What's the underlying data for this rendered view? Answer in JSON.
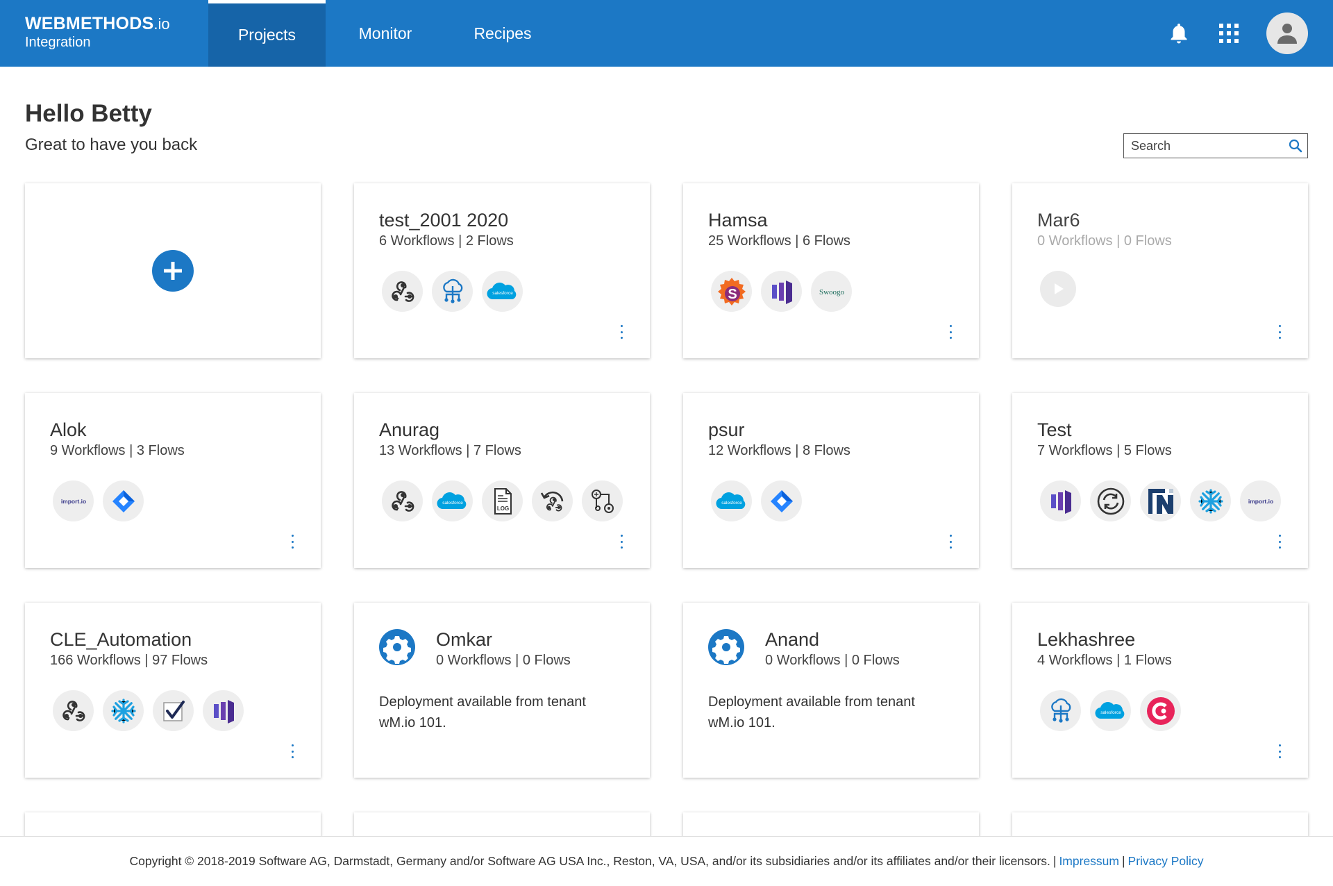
{
  "header": {
    "brand_name": "WEBMETHODS",
    "brand_suffix": ".io",
    "brand_sub": "Integration",
    "tabs": [
      {
        "label": "Projects",
        "active": true
      },
      {
        "label": "Monitor",
        "active": false
      },
      {
        "label": "Recipes",
        "active": false
      }
    ],
    "icons": [
      "bell-icon",
      "apps-grid-icon",
      "user-avatar-icon"
    ],
    "accent_color": "#1c78c5"
  },
  "greeting": {
    "title": "Hello Betty",
    "subtitle": "Great to have you back"
  },
  "search": {
    "placeholder": "Search"
  },
  "projects": [
    {
      "name": "test_2001 2020",
      "stats": "6 Workflows | 2 Flows",
      "icons": [
        "webhook-icon",
        "cloud-network-icon",
        "salesforce-icon"
      ]
    },
    {
      "name": "Hamsa",
      "stats": "25 Workflows | 6 Flows",
      "icons": [
        "s-logo-icon",
        "purple-bars-icon",
        "swoogo-icon"
      ]
    },
    {
      "name": "Mar6",
      "stats": "0 Workflows | 0 Flows",
      "icons": [
        "play-icon"
      ]
    },
    {
      "name": "Alok",
      "stats": "9 Workflows | 3 Flows",
      "icons": [
        "import-io-icon",
        "jira-icon"
      ]
    },
    {
      "name": "Anurag",
      "stats": "13 Workflows | 7 Flows",
      "icons": [
        "webhook-icon",
        "salesforce-icon",
        "log-file-icon",
        "webhook-return-icon",
        "flow-diagram-icon"
      ]
    },
    {
      "name": "psur",
      "stats": "12 Workflows | 8 Flows",
      "icons": [
        "salesforce-icon",
        "jira-icon"
      ]
    },
    {
      "name": "Test",
      "stats": "7 Workflows | 5 Flows",
      "icons": [
        "purple-bars-icon",
        "sync-icon",
        "netsuite-icon",
        "zendesk-snowflake-icon",
        "import-io-icon"
      ]
    },
    {
      "name": "CLE_Automation",
      "stats": "166 Workflows | 97 Flows",
      "icons": [
        "webhook-icon",
        "zendesk-snowflake-icon",
        "checkmark-icon",
        "purple-bars-icon"
      ]
    },
    {
      "name": "Omkar",
      "stats": "0 Workflows | 0 Flows",
      "deploy": "Deployment available from tenant wM.io 101."
    },
    {
      "name": "Anand",
      "stats": "0 Workflows | 0 Flows",
      "deploy": "Deployment available from tenant wM.io 101."
    },
    {
      "name": "Lekhashree",
      "stats": "4 Workflows | 1 Flows",
      "icons": [
        "cloud-network-icon",
        "salesforce-icon",
        "red-c-icon"
      ]
    }
  ],
  "icon_labels": {
    "salesforce": "salesforce",
    "import_io": "import.io",
    "swoogo": "Swoogo",
    "log": "LOG"
  },
  "footer": {
    "copyright": "Copyright © 2018-2019 Software AG, Darmstadt, Germany and/or Software AG USA Inc., Reston, VA, USA, and/or its subsidiaries and/or its affiliates and/or their licensors.",
    "sep": "|",
    "impressum": "Impressum",
    "privacy": "Privacy Policy"
  }
}
